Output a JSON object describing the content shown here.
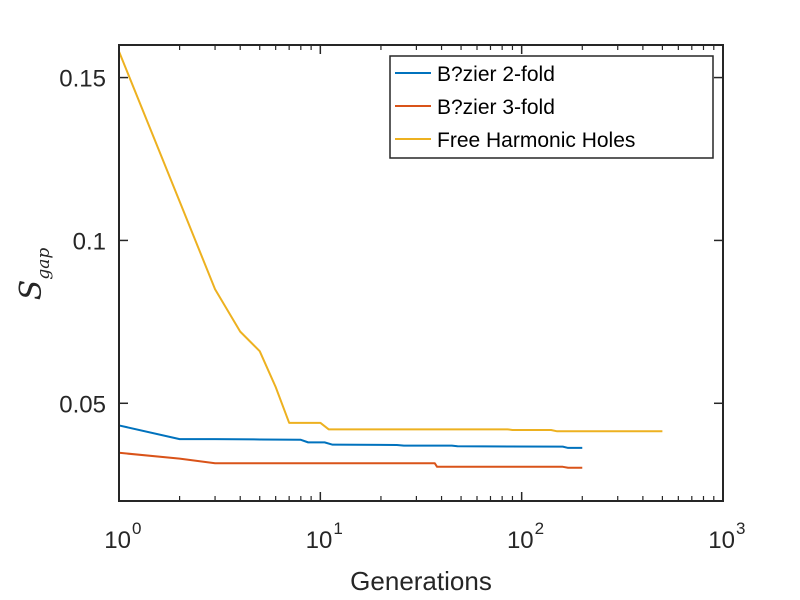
{
  "chart_data": {
    "type": "line",
    "title": "",
    "xlabel": "Generations",
    "ylabel": {
      "main": "S",
      "subscript": "gap"
    },
    "x_scale": "log",
    "xlim": [
      1,
      1000
    ],
    "ylim": [
      0.02,
      0.16
    ],
    "x_ticks": [
      {
        "base": "10",
        "exp": "0",
        "value": 1
      },
      {
        "base": "10",
        "exp": "1",
        "value": 10
      },
      {
        "base": "10",
        "exp": "2",
        "value": 100
      },
      {
        "base": "10",
        "exp": "3",
        "value": 1000
      }
    ],
    "y_ticks": [
      {
        "label": "0.05",
        "value": 0.05
      },
      {
        "label": "0.1",
        "value": 0.1
      },
      {
        "label": "0.15",
        "value": 0.15
      }
    ],
    "grid": false,
    "legend_position": "top-right",
    "series": [
      {
        "name": "B?zier 2-fold",
        "color": "#0072BD",
        "x": [
          1,
          2,
          3,
          5,
          8,
          8.7,
          9.5,
          10.5,
          11.5,
          24,
          26,
          45,
          48,
          160,
          170,
          200
        ],
        "y": [
          0.0432,
          0.039,
          0.039,
          0.0389,
          0.0388,
          0.038,
          0.038,
          0.038,
          0.0373,
          0.0372,
          0.037,
          0.037,
          0.0368,
          0.0367,
          0.0363,
          0.0363
        ]
      },
      {
        "name": "B?zier 3-fold",
        "color": "#D95319",
        "x": [
          1,
          2,
          3,
          5,
          10,
          37,
          38,
          40,
          160,
          170,
          200
        ],
        "y": [
          0.0348,
          0.033,
          0.0316,
          0.0316,
          0.0316,
          0.0316,
          0.0305,
          0.0305,
          0.0305,
          0.0302,
          0.0302
        ]
      },
      {
        "name": "Free Harmonic Holes",
        "color": "#EDB120",
        "x": [
          1,
          2,
          3,
          4,
          5,
          6,
          7,
          10,
          11,
          12,
          85,
          90,
          140,
          150,
          500
        ],
        "y": [
          0.158,
          0.112,
          0.085,
          0.072,
          0.066,
          0.055,
          0.044,
          0.044,
          0.042,
          0.042,
          0.042,
          0.0418,
          0.0418,
          0.0414,
          0.0414
        ]
      }
    ]
  }
}
